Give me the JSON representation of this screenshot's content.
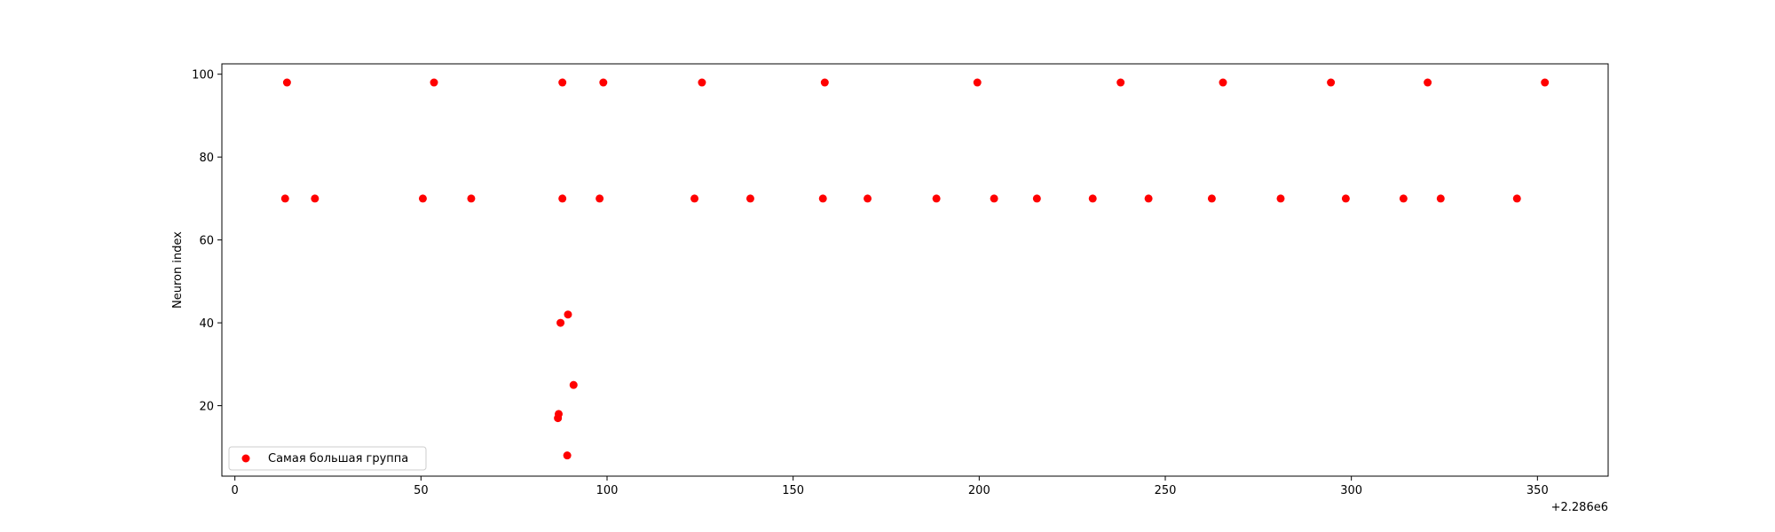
{
  "chart_data": {
    "type": "scatter",
    "title": "",
    "xlabel": "",
    "ylabel": "Neuron index",
    "x_offset_label": "+2.286e6",
    "xlim": [
      -3.5,
      369
    ],
    "ylim": [
      3,
      102.5
    ],
    "xticks": [
      0,
      50,
      100,
      150,
      200,
      250,
      300,
      350
    ],
    "yticks": [
      20,
      40,
      60,
      80,
      100
    ],
    "grid": false,
    "legend_position": "lower-left",
    "color": "#ff0000",
    "series": [
      {
        "name": "Самая большая группа",
        "points": [
          {
            "x": 14,
            "y": 98
          },
          {
            "x": 53.5,
            "y": 98
          },
          {
            "x": 88,
            "y": 98
          },
          {
            "x": 99,
            "y": 98
          },
          {
            "x": 125.5,
            "y": 98
          },
          {
            "x": 158.5,
            "y": 98
          },
          {
            "x": 199.5,
            "y": 98
          },
          {
            "x": 238,
            "y": 98
          },
          {
            "x": 265.5,
            "y": 98
          },
          {
            "x": 294.5,
            "y": 98
          },
          {
            "x": 320.5,
            "y": 98
          },
          {
            "x": 352,
            "y": 98
          },
          {
            "x": 13.5,
            "y": 70
          },
          {
            "x": 21.5,
            "y": 70
          },
          {
            "x": 50.5,
            "y": 70
          },
          {
            "x": 63.5,
            "y": 70
          },
          {
            "x": 88,
            "y": 70
          },
          {
            "x": 98,
            "y": 70
          },
          {
            "x": 123.5,
            "y": 70
          },
          {
            "x": 138.5,
            "y": 70
          },
          {
            "x": 158,
            "y": 70
          },
          {
            "x": 170,
            "y": 70
          },
          {
            "x": 188.5,
            "y": 70
          },
          {
            "x": 204,
            "y": 70
          },
          {
            "x": 215.5,
            "y": 70
          },
          {
            "x": 230.5,
            "y": 70
          },
          {
            "x": 245.5,
            "y": 70
          },
          {
            "x": 262.5,
            "y": 70
          },
          {
            "x": 281,
            "y": 70
          },
          {
            "x": 298.5,
            "y": 70
          },
          {
            "x": 314,
            "y": 70
          },
          {
            "x": 324,
            "y": 70
          },
          {
            "x": 344.5,
            "y": 70
          },
          {
            "x": 89.5,
            "y": 42
          },
          {
            "x": 87.5,
            "y": 40
          },
          {
            "x": 91,
            "y": 25
          },
          {
            "x": 87,
            "y": 18
          },
          {
            "x": 86.8,
            "y": 17
          },
          {
            "x": 89.3,
            "y": 8
          }
        ]
      }
    ]
  }
}
